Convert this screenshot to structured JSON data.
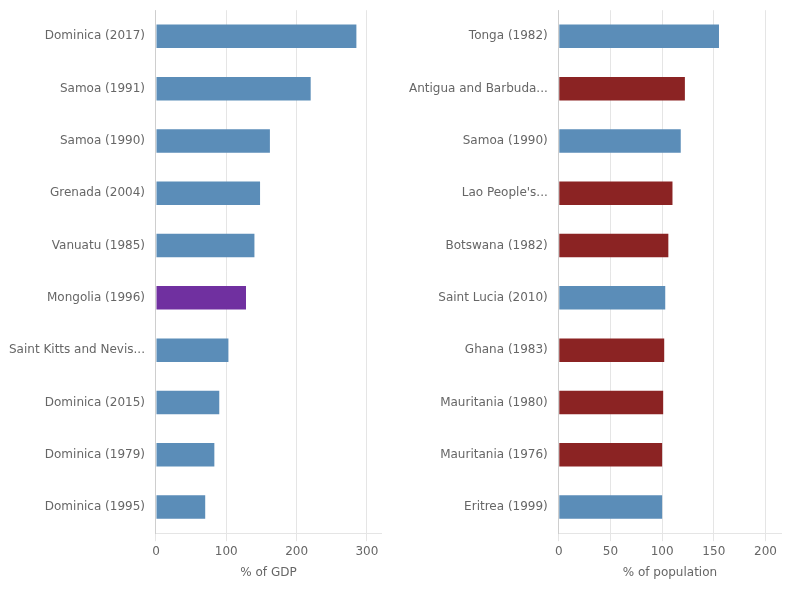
{
  "chart_data": [
    {
      "type": "bar",
      "orientation": "horizontal",
      "categories": [
        "Dominica (2017)",
        "Samoa (1991)",
        "Samoa (1990)",
        "Grenada (2004)",
        "Vanuatu (1985)",
        "Mongolia (1996)",
        "Saint Kitts and Nevis...",
        "Dominica (2015)",
        "Dominica (1979)",
        "Dominica (1995)"
      ],
      "values": [
        285,
        220,
        162,
        148,
        140,
        128,
        103,
        90,
        83,
        70
      ],
      "colors": [
        "#5b8db8",
        "#5b8db8",
        "#5b8db8",
        "#5b8db8",
        "#5b8db8",
        "#7030a0",
        "#5b8db8",
        "#5b8db8",
        "#5b8db8",
        "#5b8db8"
      ],
      "x_label": "% of GDP",
      "xlim": [
        0,
        320
      ],
      "xticks": [
        0,
        100,
        200,
        300
      ],
      "grid": true
    },
    {
      "type": "bar",
      "orientation": "horizontal",
      "categories": [
        "Tonga (1982)",
        "Antigua and Barbuda...",
        "Samoa (1990)",
        "Lao People's...",
        "Botswana (1982)",
        "Saint Lucia (2010)",
        "Ghana (1983)",
        "Mauritania (1980)",
        "Mauritania (1976)",
        "Eritrea (1999)"
      ],
      "values": [
        155,
        122,
        118,
        110,
        106,
        103,
        102,
        101,
        100,
        100
      ],
      "colors": [
        "#5b8db8",
        "#8b2323",
        "#5b8db8",
        "#8b2323",
        "#8b2323",
        "#5b8db8",
        "#8b2323",
        "#8b2323",
        "#8b2323",
        "#5b8db8"
      ],
      "x_label": "% of population",
      "xlim": [
        0,
        215
      ],
      "xticks": [
        0,
        50,
        100,
        150,
        200
      ],
      "grid": true
    }
  ]
}
